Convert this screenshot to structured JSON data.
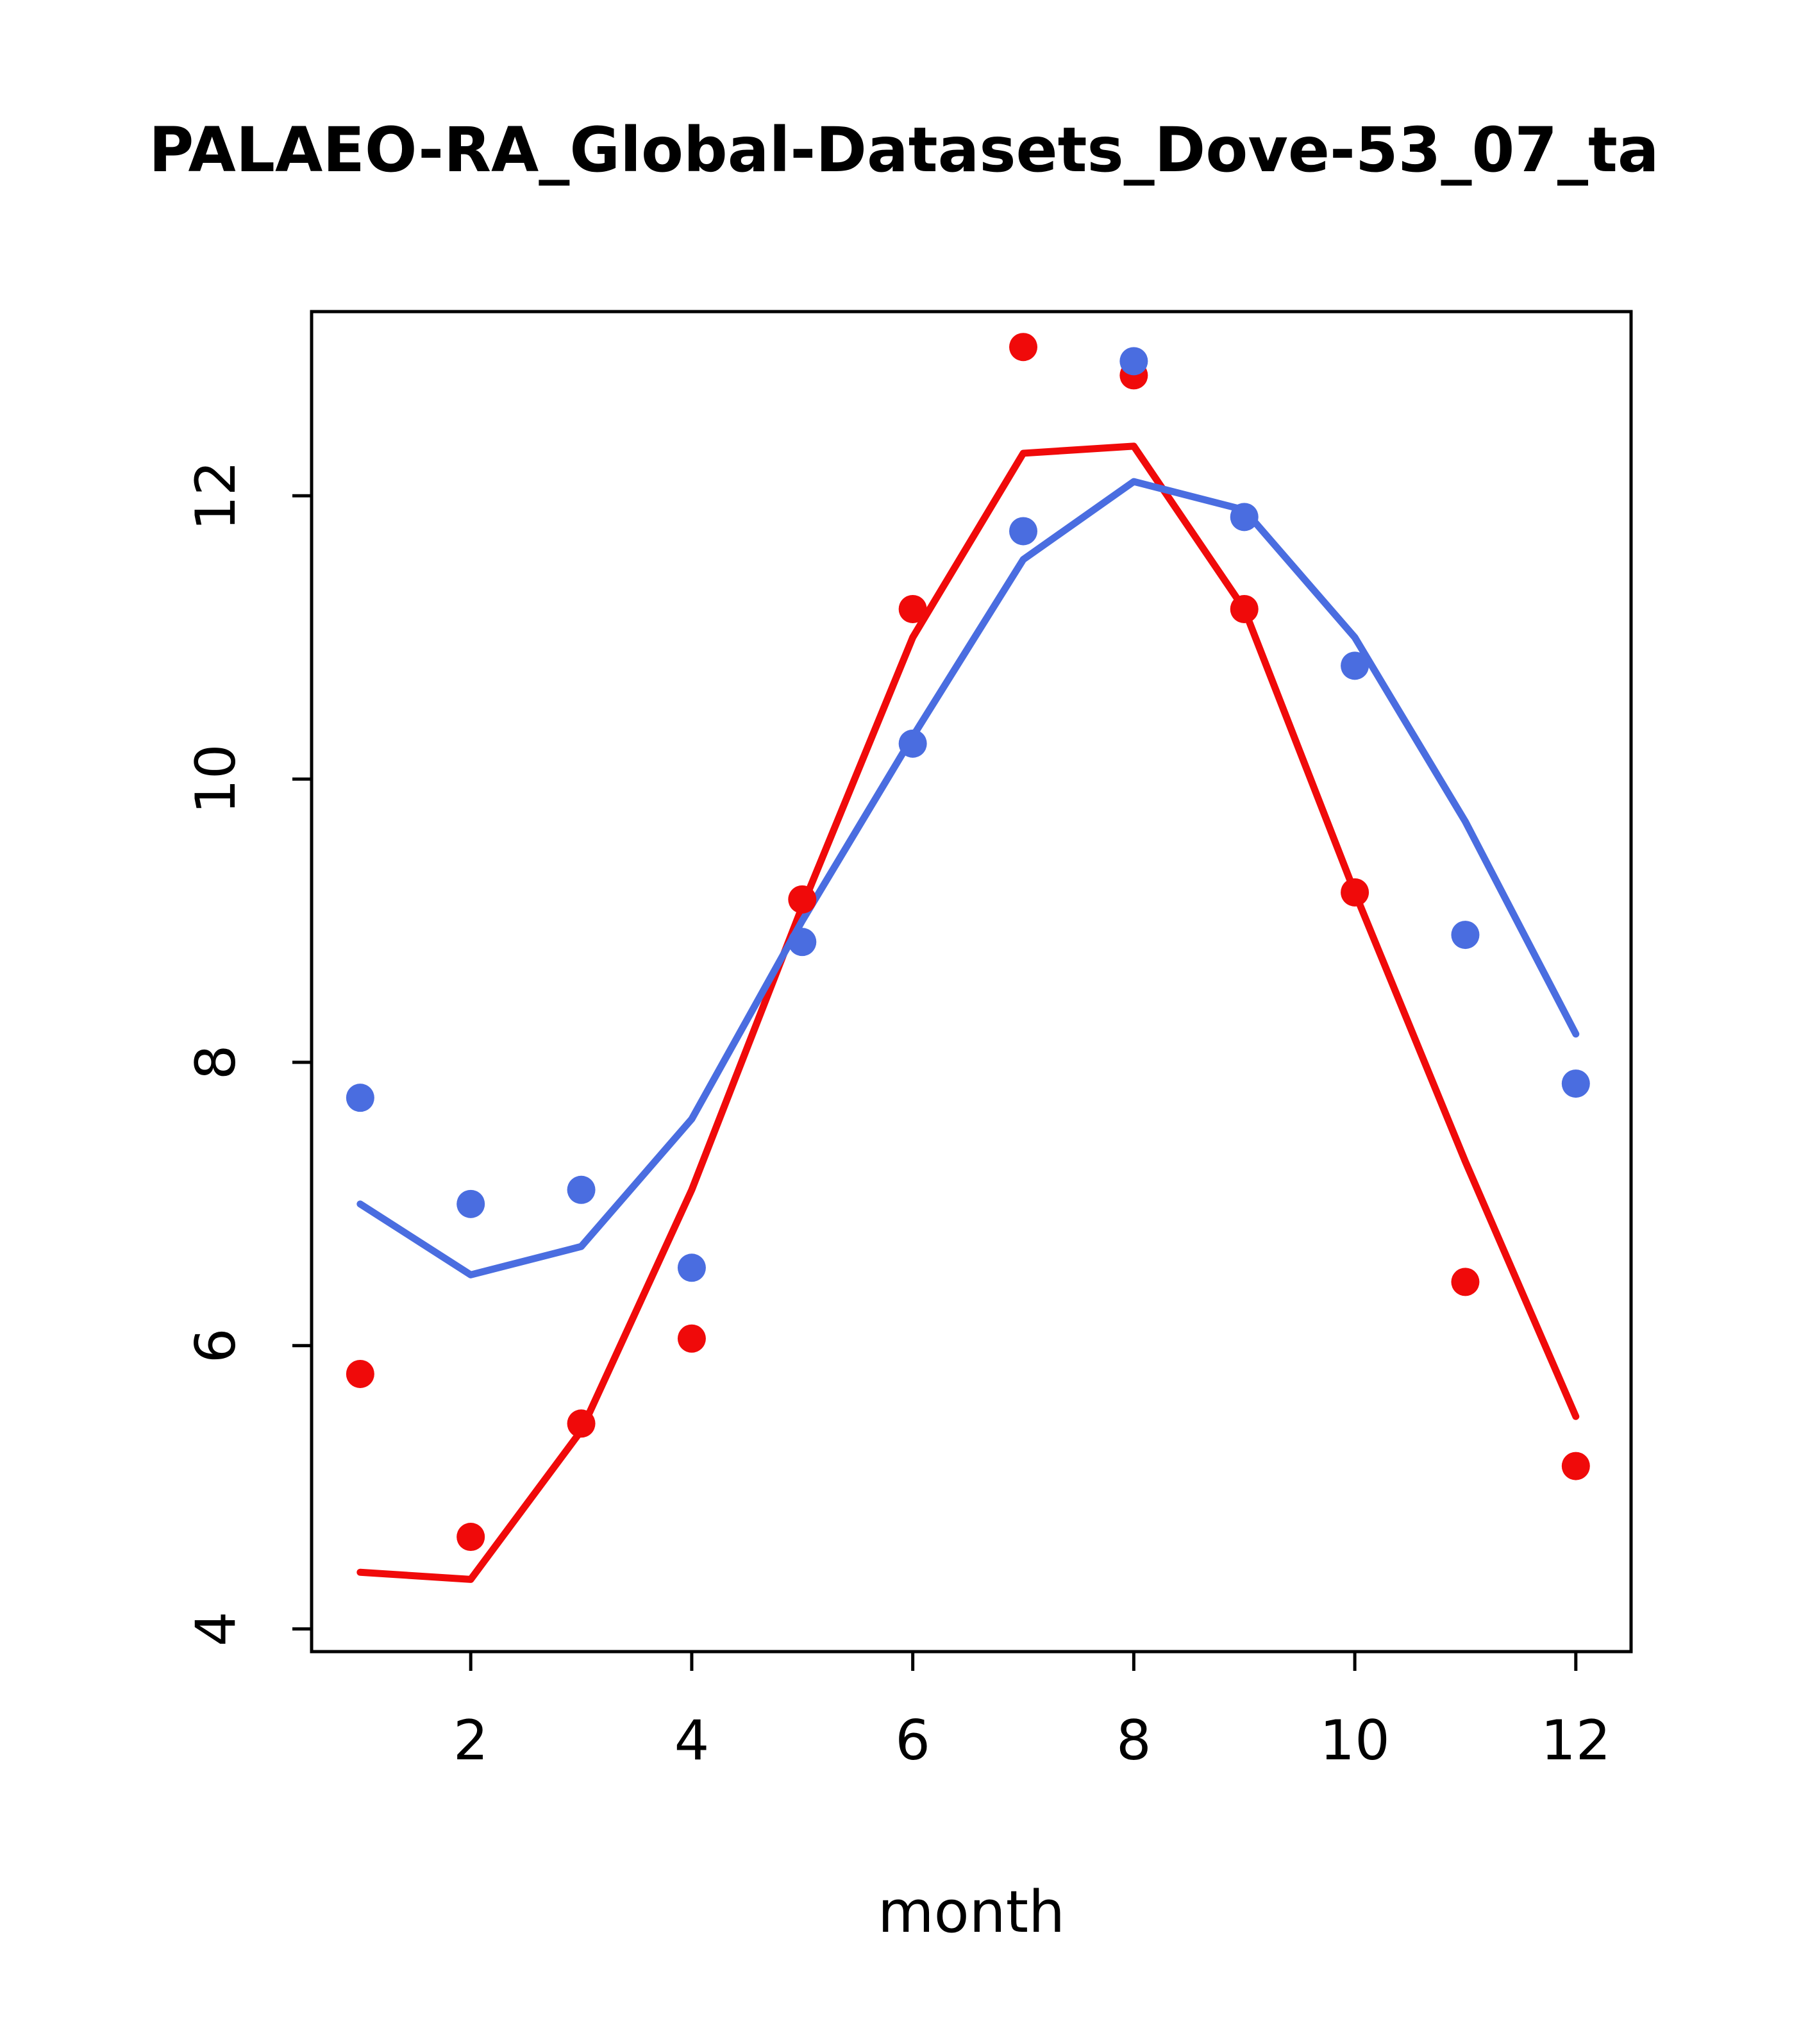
{
  "page": {
    "background": "#ffffff"
  },
  "chart_data": {
    "type": "line",
    "title": "PALAEO-RA_Global-Datasets_Dove-53_07_ta",
    "xlabel": "month",
    "ylabel": "",
    "x": [
      1,
      2,
      3,
      4,
      5,
      6,
      7,
      8,
      9,
      10,
      11,
      12
    ],
    "x_ticks": [
      2,
      4,
      6,
      8,
      10,
      12
    ],
    "y_ticks": [
      4,
      6,
      8,
      10,
      12
    ],
    "xlim": [
      0.56,
      12.5
    ],
    "ylim": [
      3.84,
      13.3
    ],
    "grid": false,
    "legend": "none",
    "colors": {
      "red": "#f00a0a",
      "blue": "#4a6de0",
      "axis": "#000000"
    },
    "series": [
      {
        "name": "red-line",
        "type": "line",
        "color": "#f00a0a",
        "values": [
          4.4,
          4.35,
          5.4,
          7.1,
          9.1,
          11.0,
          12.3,
          12.35,
          11.2,
          9.2,
          7.3,
          5.5
        ]
      },
      {
        "name": "blue-line",
        "type": "line",
        "color": "#4a6de0",
        "values": [
          7.0,
          6.5,
          6.7,
          7.6,
          9.0,
          10.3,
          11.55,
          12.1,
          11.9,
          11.0,
          9.7,
          8.2
        ]
      },
      {
        "name": "red-points",
        "type": "scatter",
        "color": "#f00a0a",
        "values": [
          5.8,
          4.65,
          5.45,
          6.05,
          9.15,
          11.2,
          13.05,
          12.85,
          11.2,
          9.2,
          6.45,
          5.15
        ]
      },
      {
        "name": "blue-points",
        "type": "scatter",
        "color": "#4a6de0",
        "values": [
          7.75,
          7.0,
          7.1,
          6.55,
          8.85,
          10.25,
          11.75,
          12.95,
          11.85,
          10.8,
          8.9,
          7.85
        ]
      }
    ]
  }
}
